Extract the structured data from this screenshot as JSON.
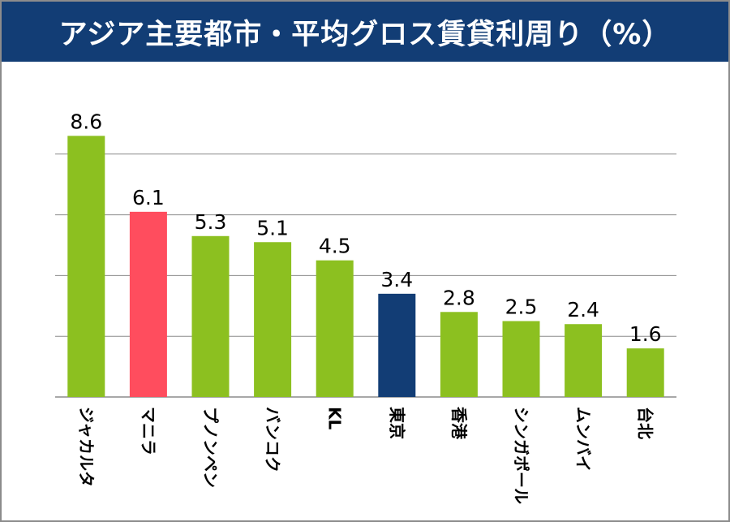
{
  "title": "アジア主要都市・平均グロス賃貸利周り（%）",
  "colors": {
    "title_bg": "#123d75",
    "default_bar": "#8cc020",
    "gridline": "#8c8c8c"
  },
  "chart_data": {
    "type": "bar",
    "title": "アジア主要都市・平均グロス賃貸利周り（%）",
    "xlabel": "",
    "ylabel": "",
    "ylim": [
      0,
      9.6
    ],
    "grid": true,
    "categories": [
      "ジャカルタ",
      "マニラ",
      "プノンペン",
      "バンコク",
      "KL",
      "東京",
      "香港",
      "シンガポール",
      "ムンバイ",
      "台北"
    ],
    "values": [
      8.6,
      6.1,
      5.3,
      5.1,
      4.5,
      3.4,
      2.8,
      2.5,
      2.4,
      1.6
    ],
    "value_labels": [
      "8.6",
      "6.1",
      "5.3",
      "5.1",
      "4.5",
      "3.4",
      "2.8",
      "2.5",
      "2.4",
      "1.6"
    ],
    "bar_colors": [
      "#8cc020",
      "#ff4d5e",
      "#8cc020",
      "#8cc020",
      "#8cc020",
      "#123d75",
      "#8cc020",
      "#8cc020",
      "#8cc020",
      "#8cc020"
    ]
  }
}
